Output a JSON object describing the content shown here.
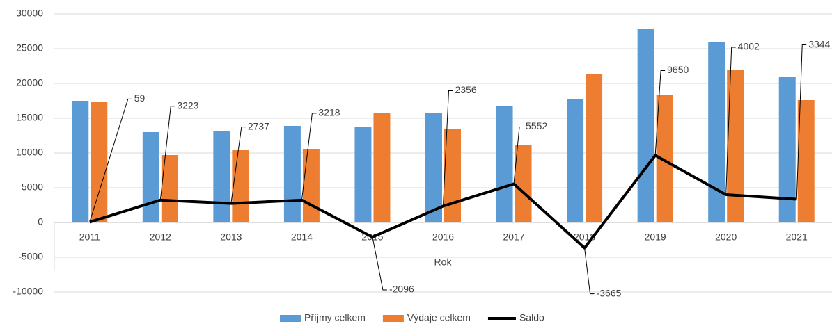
{
  "chart_data": {
    "type": "bar_line",
    "x_label": "Rok",
    "categories": [
      "2011",
      "2012",
      "2013",
      "2014",
      "2015",
      "2016",
      "2017",
      "2018",
      "2019",
      "2020",
      "2021"
    ],
    "series": [
      {
        "name": "Příjmy celkem",
        "color": "#5b9bd5",
        "type": "bar",
        "values": [
          17500,
          13000,
          13100,
          13900,
          13700,
          15700,
          16700,
          17800,
          27900,
          25900,
          20900
        ]
      },
      {
        "name": "Výdaje celkem",
        "color": "#ed7d31",
        "type": "bar",
        "values": [
          17400,
          9700,
          10400,
          10600,
          15800,
          13400,
          11200,
          21400,
          18300,
          21900,
          17600
        ]
      },
      {
        "name": "Saldo",
        "color": "#000000",
        "type": "line",
        "values": [
          59,
          3223,
          2737,
          3218,
          -2096,
          2356,
          5552,
          -3665,
          9650,
          4002,
          3344
        ]
      }
    ],
    "ylim": [
      -10000,
      30000
    ],
    "yticks": [
      -10000,
      -5000,
      0,
      5000,
      10000,
      15000,
      20000,
      25000,
      30000
    ],
    "grid": true,
    "legend": "bottom"
  }
}
